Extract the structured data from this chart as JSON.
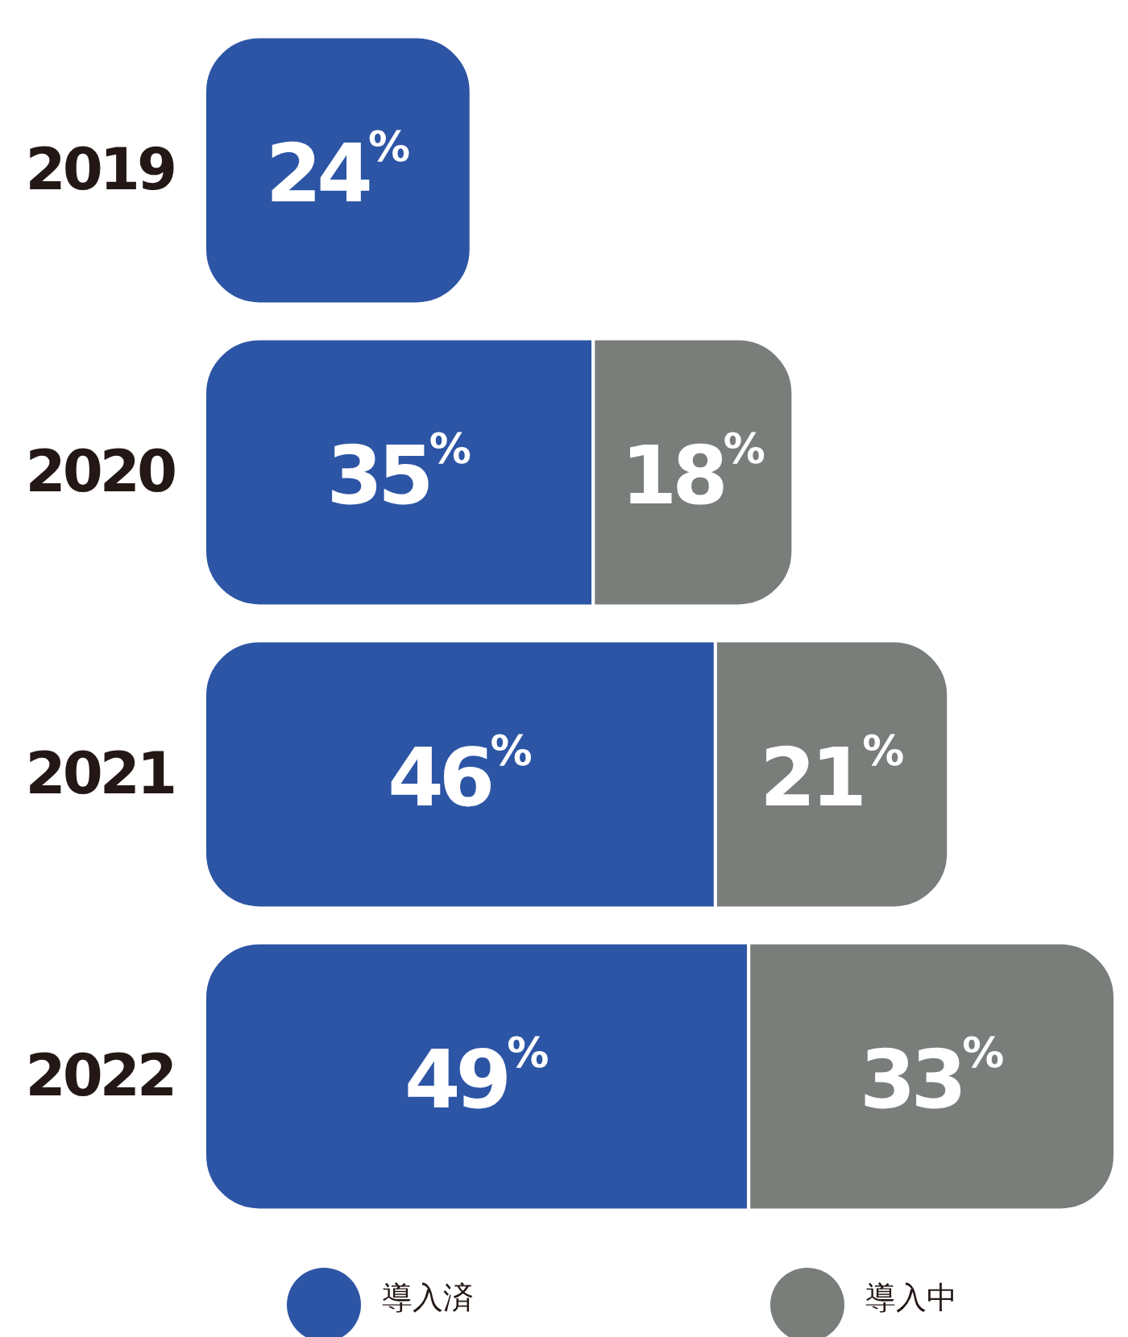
{
  "chart_data": {
    "type": "bar",
    "orientation": "horizontal",
    "stacked": true,
    "legend": "bottom",
    "categories": [
      "2019",
      "2020",
      "2021",
      "2022"
    ],
    "series": [
      {
        "name": "導入済",
        "color": "#2d55a5",
        "values": [
          24,
          35,
          46,
          49
        ],
        "value_labels": [
          "24$^{%}$",
          "35$^{%}$",
          "46$^{%}$",
          "49$^{%}$"
        ]
      },
      {
        "name": "導入中",
        "color": "#797e7a",
        "values": [
          null,
          18,
          21,
          33
        ],
        "value_labels": [
          null,
          "18$^{%}$",
          "21$^{%}$",
          "33$^{%}$"
        ]
      }
    ]
  }
}
